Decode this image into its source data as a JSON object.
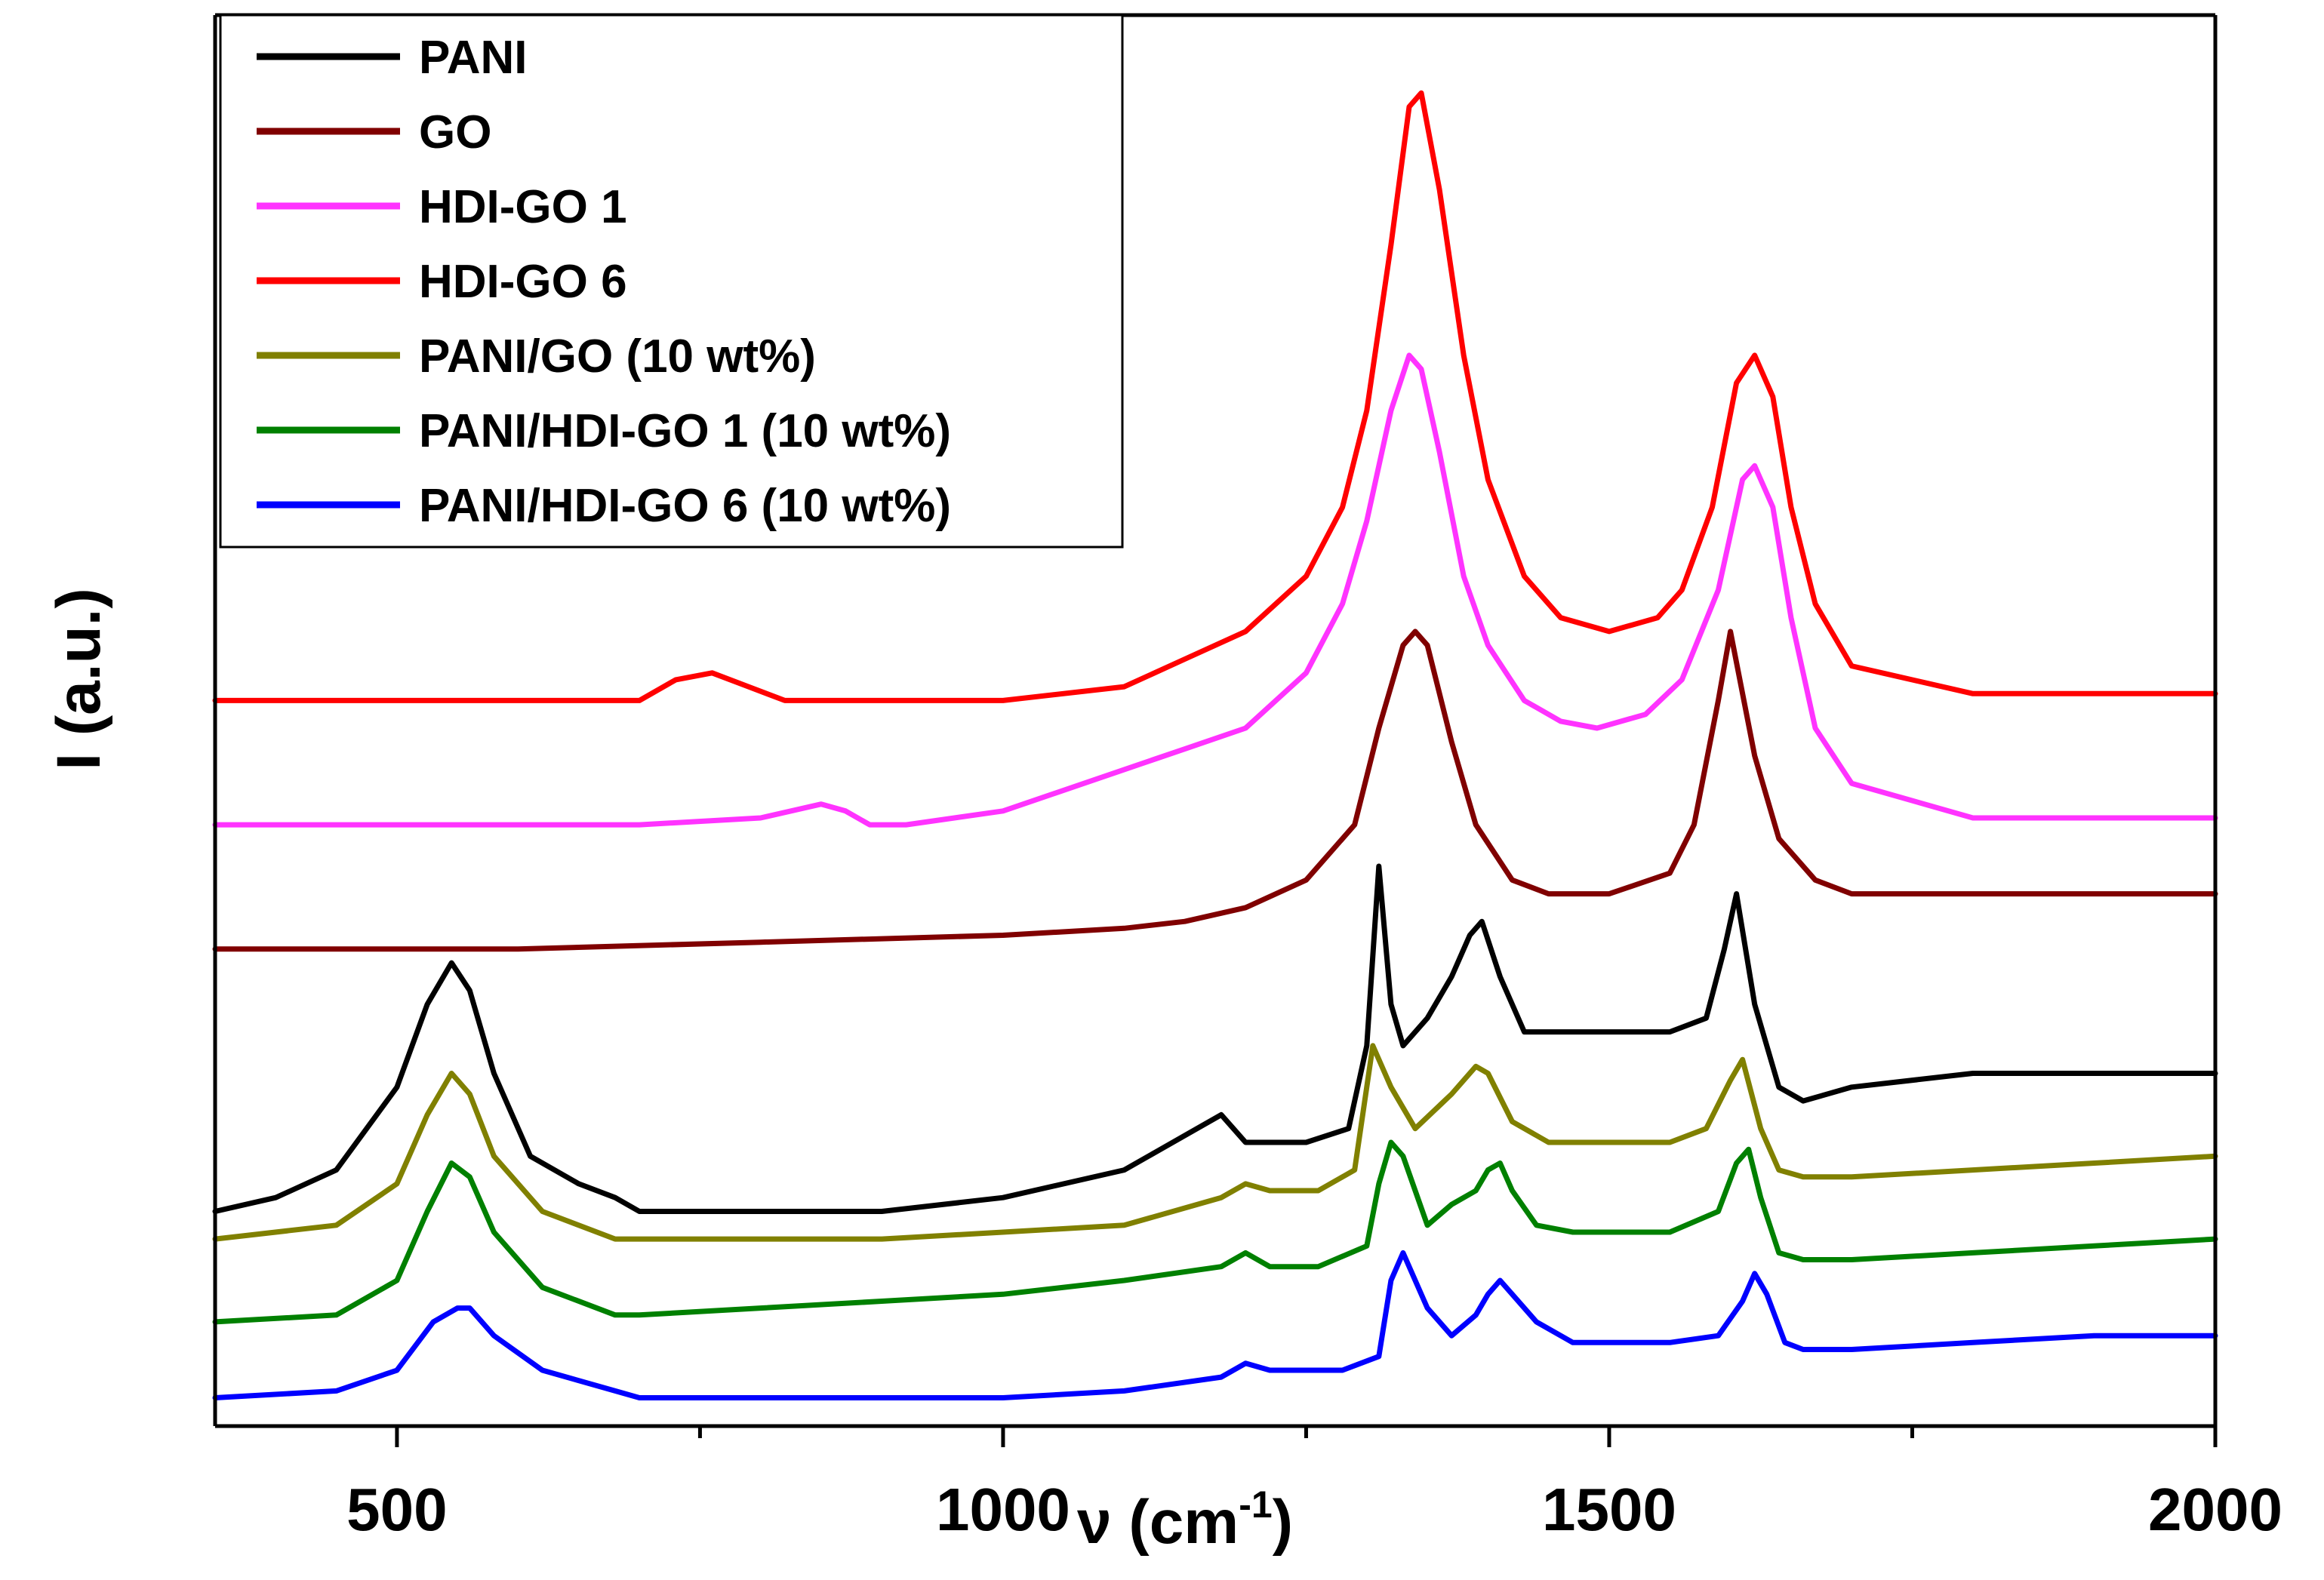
{
  "chart_data": {
    "type": "line",
    "title": "",
    "xlabel": "ν (cm⁻¹)",
    "xlabel_base": "ν (cm",
    "xlabel_sup": "-1",
    "xlabel_close": ")",
    "ylabel": "I (a.u.)",
    "xlim": [
      350,
      2000
    ],
    "ylim": [
      0,
      100
    ],
    "xticks": [
      500,
      1000,
      1500,
      2000
    ],
    "xtick_labels": [
      "500",
      "1000",
      "1500",
      "2000"
    ],
    "grid": false,
    "legend_position": "top-left",
    "series": [
      {
        "name": "PANI",
        "color": "#000000",
        "x": [
          350,
          400,
          450,
          500,
          525,
          545,
          560,
          580,
          610,
          650,
          680,
          700,
          800,
          900,
          1000,
          1100,
          1160,
          1180,
          1190,
          1200,
          1250,
          1285,
          1300,
          1310,
          1320,
          1330,
          1350,
          1370,
          1385,
          1395,
          1410,
          1430,
          1450,
          1500,
          1550,
          1580,
          1595,
          1605,
          1620,
          1640,
          1660,
          1700,
          1800,
          1900,
          2000
        ],
        "y": [
          15,
          16,
          18,
          24,
          30,
          33,
          31,
          25,
          19,
          17,
          16,
          15,
          15,
          15,
          16,
          18,
          21,
          22,
          21,
          20,
          20,
          21,
          27,
          40,
          30,
          27,
          29,
          32,
          35,
          36,
          32,
          28,
          28,
          28,
          28,
          29,
          34,
          38,
          30,
          24,
          23,
          24,
          25,
          25,
          25
        ]
      },
      {
        "name": "GO",
        "color": "#800000",
        "x": [
          350,
          600,
          800,
          1000,
          1100,
          1150,
          1200,
          1250,
          1290,
          1310,
          1330,
          1340,
          1350,
          1370,
          1390,
          1420,
          1450,
          1500,
          1550,
          1570,
          1590,
          1600,
          1620,
          1640,
          1670,
          1700,
          1800,
          2000
        ],
        "y": [
          34,
          34,
          34.5,
          35,
          35.5,
          36,
          37,
          39,
          43,
          50,
          56,
          57,
          56,
          49,
          43,
          39,
          38,
          38,
          39.5,
          43,
          52,
          57,
          48,
          42,
          39,
          38,
          38,
          38
        ]
      },
      {
        "name": "HDI-GO 1",
        "color": "#ff33ff",
        "x": [
          350,
          500,
          700,
          800,
          850,
          870,
          890,
          920,
          1000,
          1100,
          1150,
          1200,
          1250,
          1280,
          1300,
          1320,
          1335,
          1345,
          1360,
          1380,
          1400,
          1430,
          1460,
          1490,
          1530,
          1560,
          1590,
          1610,
          1620,
          1635,
          1650,
          1670,
          1700,
          1800,
          2000
        ],
        "y": [
          43,
          43,
          43,
          43.5,
          44.5,
          44,
          43,
          43,
          44,
          47,
          48.5,
          50,
          54,
          59,
          65,
          73,
          77,
          76,
          70,
          61,
          56,
          52,
          50.5,
          50,
          51,
          53.5,
          60,
          68,
          69,
          66,
          58,
          50,
          46,
          43.5,
          43.5
        ]
      },
      {
        "name": "HDI-GO 6",
        "color": "#ff0000",
        "x": [
          350,
          600,
          700,
          730,
          760,
          790,
          820,
          1000,
          1100,
          1150,
          1200,
          1250,
          1280,
          1300,
          1320,
          1335,
          1345,
          1360,
          1380,
          1400,
          1430,
          1460,
          1500,
          1540,
          1560,
          1585,
          1605,
          1620,
          1635,
          1650,
          1670,
          1700,
          1800,
          2000
        ],
        "y": [
          52,
          52,
          52,
          53.5,
          54,
          53,
          52,
          52,
          53,
          55,
          57,
          61,
          66,
          73,
          85,
          95,
          96,
          89,
          77,
          68,
          61,
          58,
          57,
          58,
          60,
          66,
          75,
          77,
          74,
          66,
          59,
          54.5,
          52.5,
          52.5
        ]
      },
      {
        "name": "PANI/GO (10 wt%)",
        "color": "#808000",
        "x": [
          350,
          450,
          500,
          525,
          545,
          560,
          580,
          620,
          680,
          700,
          800,
          900,
          1000,
          1100,
          1180,
          1200,
          1220,
          1260,
          1290,
          1305,
          1320,
          1340,
          1370,
          1390,
          1400,
          1420,
          1450,
          1500,
          1550,
          1580,
          1600,
          1610,
          1625,
          1640,
          1660,
          1700,
          1800,
          1900,
          2000
        ],
        "y": [
          13,
          14,
          17,
          22,
          25,
          23.5,
          19,
          15,
          13,
          13,
          13,
          13,
          13.5,
          14,
          16,
          17,
          16.5,
          16.5,
          18,
          27,
          24,
          21,
          23.5,
          25.5,
          25,
          21.5,
          20,
          20,
          20,
          21,
          24.5,
          26,
          21,
          18,
          17.5,
          17.5,
          18,
          18.5,
          19
        ]
      },
      {
        "name": "PANI/HDI-GO 1 (10 wt%)",
        "color": "#008000",
        "x": [
          350,
          450,
          500,
          525,
          545,
          560,
          580,
          620,
          680,
          700,
          800,
          900,
          1000,
          1100,
          1180,
          1200,
          1220,
          1260,
          1300,
          1310,
          1320,
          1330,
          1350,
          1370,
          1390,
          1400,
          1410,
          1420,
          1440,
          1470,
          1500,
          1550,
          1590,
          1605,
          1615,
          1625,
          1640,
          1660,
          1700,
          1800,
          1900,
          2000
        ],
        "y": [
          7,
          7.5,
          10,
          15,
          18.5,
          17.5,
          13.5,
          9.5,
          7.5,
          7.5,
          8,
          8.5,
          9,
          10,
          11,
          12,
          11,
          11,
          12.5,
          17,
          20,
          19,
          14,
          15.5,
          16.5,
          18,
          18.5,
          16.5,
          14,
          13.5,
          13.5,
          13.5,
          15,
          18.5,
          19.5,
          16,
          12,
          11.5,
          11.5,
          12,
          12.5,
          13
        ]
      },
      {
        "name": "PANI/HDI-GO 6 (10 wt%)",
        "color": "#0000ff",
        "x": [
          350,
          450,
          500,
          530,
          550,
          560,
          580,
          620,
          680,
          700,
          800,
          900,
          1000,
          1100,
          1180,
          1200,
          1220,
          1280,
          1310,
          1320,
          1330,
          1350,
          1370,
          1390,
          1400,
          1410,
          1420,
          1440,
          1470,
          1500,
          1550,
          1590,
          1610,
          1620,
          1630,
          1645,
          1660,
          1700,
          1800,
          1900,
          2000
        ],
        "y": [
          1.5,
          2,
          3.5,
          7,
          8,
          8,
          6,
          3.5,
          2,
          1.5,
          1.5,
          1.5,
          1.5,
          2,
          3,
          4,
          3.5,
          3.5,
          4.5,
          10,
          12,
          8,
          6,
          7.5,
          9,
          10,
          9,
          7,
          5.5,
          5.5,
          5.5,
          6,
          8.5,
          10.5,
          9,
          5.5,
          5,
          5,
          5.5,
          6,
          6
        ]
      }
    ]
  }
}
